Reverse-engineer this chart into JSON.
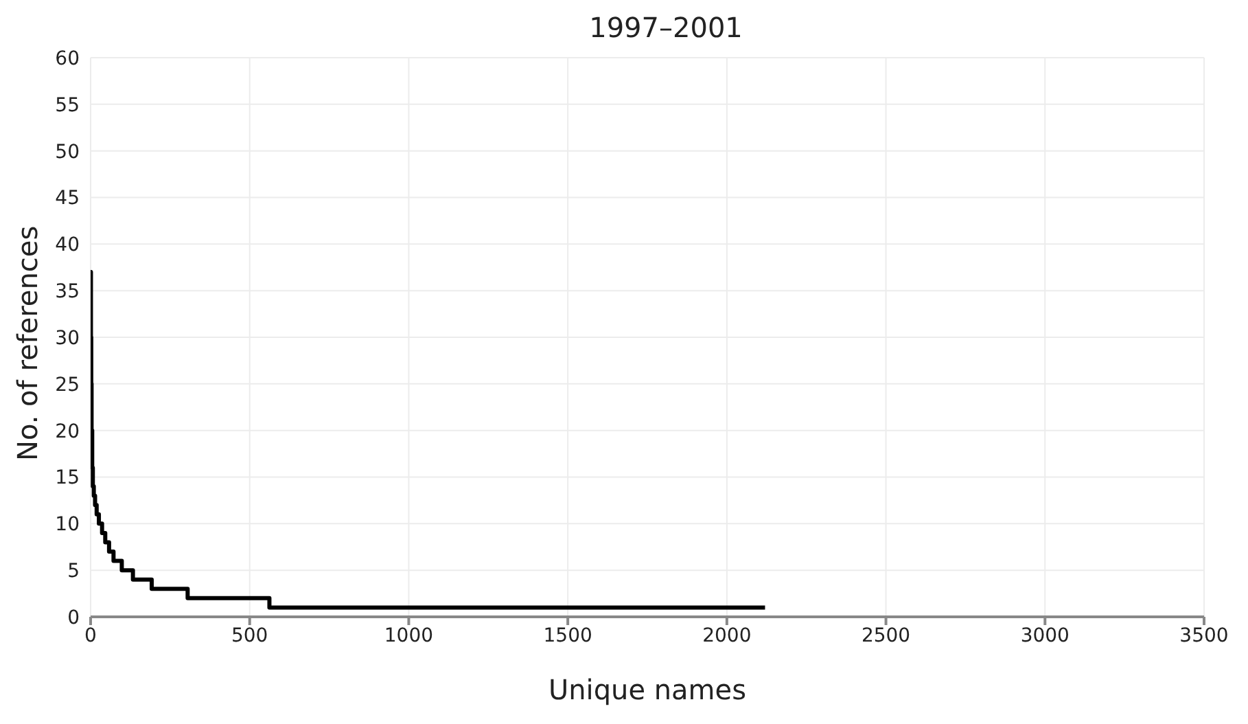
{
  "chart_data": {
    "type": "step",
    "title": "1997–2001",
    "xlabel": "Unique names",
    "ylabel": "No. of references",
    "x": [
      0,
      1,
      2,
      3,
      5,
      7,
      10,
      14,
      19,
      26,
      36,
      46,
      58,
      72,
      98,
      133,
      192,
      305,
      562,
      2120
    ],
    "series": [
      {
        "color": "#000000",
        "values": [
          37,
          30,
          25,
          20,
          16,
          14,
          13,
          12,
          11,
          10,
          9,
          8,
          7,
          6,
          5,
          4,
          3,
          2,
          1,
          1
        ]
      }
    ],
    "xlim": [
      0,
      3500
    ],
    "xticks": [
      0,
      500,
      1000,
      1500,
      2000,
      2500,
      3000,
      3500
    ],
    "ylim": [
      0,
      60
    ],
    "yticks": [
      0,
      5,
      10,
      15,
      20,
      25,
      30,
      35,
      40,
      45,
      50,
      55,
      60
    ],
    "grid": true,
    "marker": "none",
    "line_style": "solid",
    "legend": false
  }
}
